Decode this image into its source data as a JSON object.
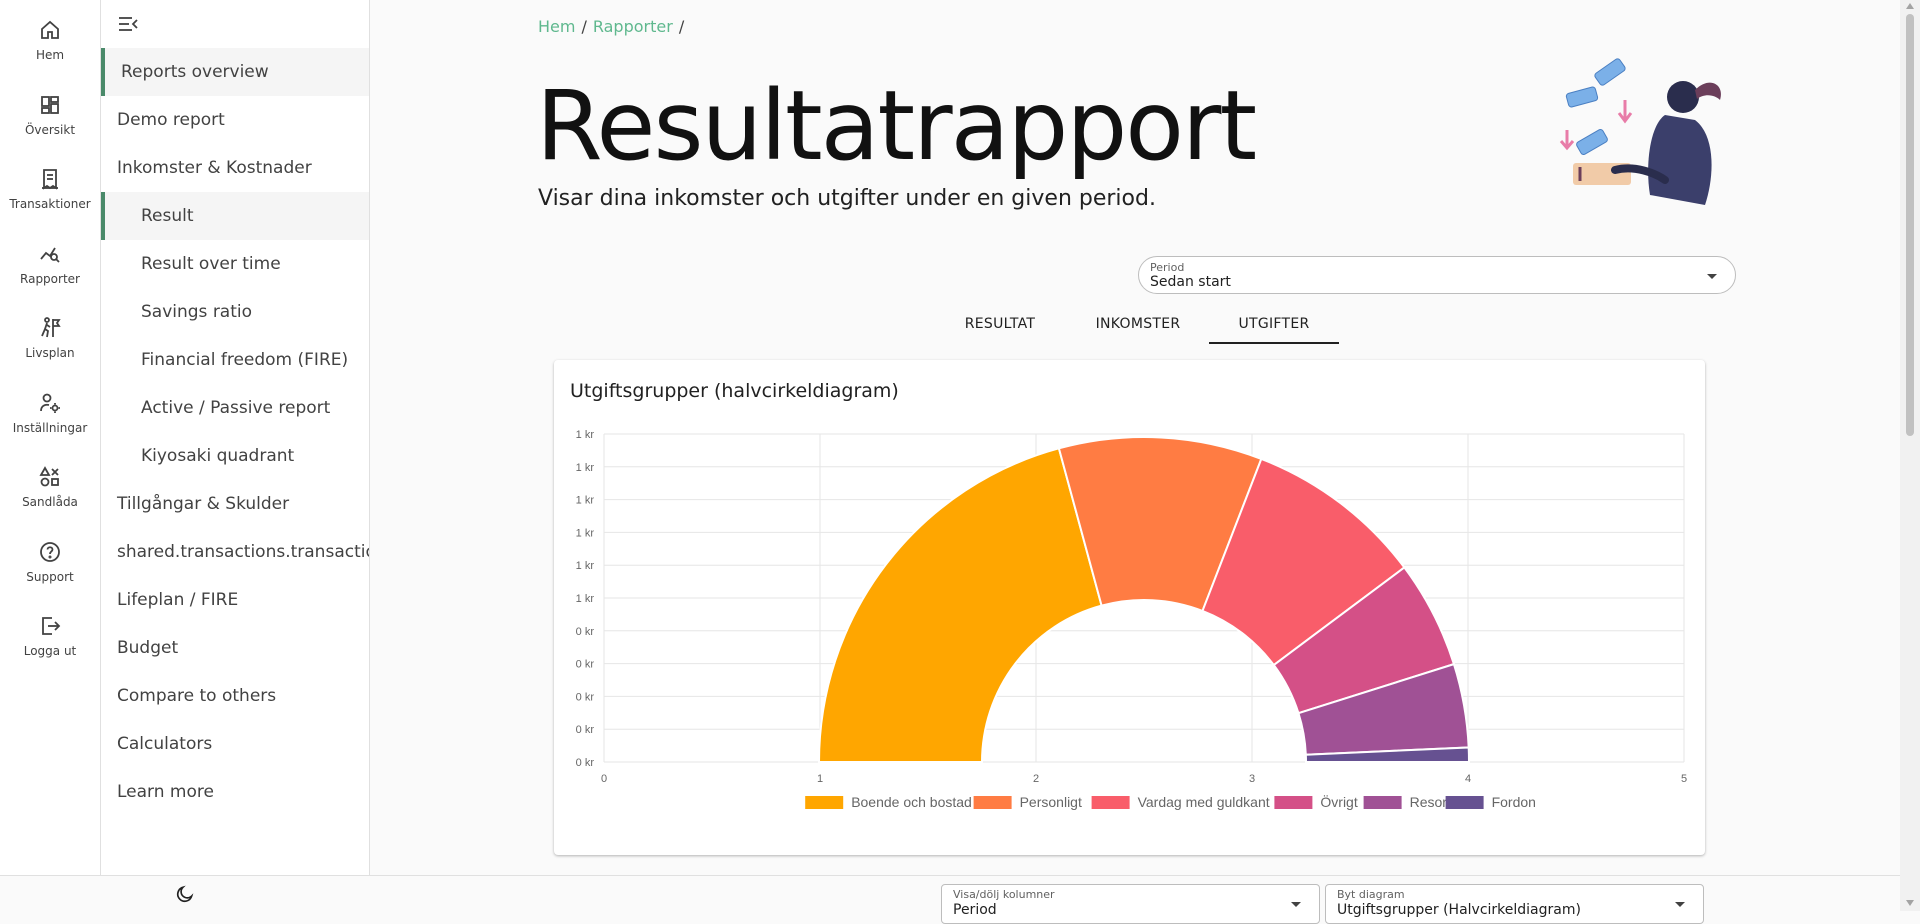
{
  "rail": {
    "items": [
      {
        "label": "Hem",
        "icon": "home-icon"
      },
      {
        "label": "Översikt",
        "icon": "dashboard-icon"
      },
      {
        "label": "Transaktioner",
        "icon": "receipt-icon"
      },
      {
        "label": "Rapporter",
        "icon": "chart-search-icon"
      },
      {
        "label": "Livsplan",
        "icon": "hiker-flag-icon"
      },
      {
        "label": "Inställningar",
        "icon": "user-gear-icon"
      },
      {
        "label": "Sandlåda",
        "icon": "shapes-icon"
      },
      {
        "label": "Support",
        "icon": "help-icon"
      },
      {
        "label": "Logga ut",
        "icon": "logout-icon"
      }
    ]
  },
  "sidebar": {
    "items": [
      {
        "label": "Reports overview",
        "active": true,
        "indent": 0
      },
      {
        "label": "Demo report",
        "active": false,
        "indent": 0
      },
      {
        "label": "Inkomster & Kostnader",
        "active": false,
        "indent": 0
      },
      {
        "label": "Result",
        "active": true,
        "indent": 1
      },
      {
        "label": "Result over time",
        "active": false,
        "indent": 1
      },
      {
        "label": "Savings ratio",
        "active": false,
        "indent": 1
      },
      {
        "label": "Financial freedom (FIRE)",
        "active": false,
        "indent": 1
      },
      {
        "label": "Active / Passive report",
        "active": false,
        "indent": 1
      },
      {
        "label": "Kiyosaki quadrant",
        "active": false,
        "indent": 1
      },
      {
        "label": "Tillgångar & Skulder",
        "active": false,
        "indent": 0
      },
      {
        "label": "shared.transactions.transactions",
        "active": false,
        "indent": 0
      },
      {
        "label": "Lifeplan / FIRE",
        "active": false,
        "indent": 0
      },
      {
        "label": "Budget",
        "active": false,
        "indent": 0
      },
      {
        "label": "Compare to others",
        "active": false,
        "indent": 0
      },
      {
        "label": "Calculators",
        "active": false,
        "indent": 0
      },
      {
        "label": "Learn more",
        "active": false,
        "indent": 0
      }
    ]
  },
  "breadcrumb": {
    "items": [
      "Hem",
      "Rapporter"
    ],
    "separator": "/"
  },
  "page": {
    "title": "Resultatrapport",
    "subtitle": "Visar dina inkomster och utgifter under en given period."
  },
  "period": {
    "label": "Period",
    "value": "Sedan start"
  },
  "tabs": [
    {
      "label": "RESULTAT",
      "active": false
    },
    {
      "label": "INKOMSTER",
      "active": false
    },
    {
      "label": "UTGIFTER",
      "active": true
    }
  ],
  "card": {
    "title": "Utgiftsgrupper (halvcirkeldiagram)"
  },
  "chart_data": {
    "type": "pie",
    "variant": "half-doughnut",
    "series": [
      {
        "name": "Boende och bostad",
        "value": 35,
        "color": "#ffa600"
      },
      {
        "name": "Personligt",
        "value": 17,
        "color": "#ff7c43"
      },
      {
        "name": "Vardag med guldkant",
        "value": 15,
        "color": "#f95d6a"
      },
      {
        "name": "Övrigt",
        "value": 9,
        "color": "#d45087"
      },
      {
        "name": "Resor",
        "value": 7,
        "color": "#a05195"
      },
      {
        "name": "Fordon",
        "value": 1.2,
        "color": "#665191"
      }
    ],
    "x_ticks": [
      "0",
      "1",
      "2",
      "3",
      "4",
      "5"
    ],
    "y_ticks": [
      "1 kr",
      "1 kr",
      "1 kr",
      "1 kr",
      "1 kr",
      "1 kr",
      "0 kr",
      "0 kr",
      "0 kr",
      "0 kr",
      "0 kr"
    ],
    "grid": true,
    "legend_position": "bottom"
  },
  "bottom_controls": {
    "columns": {
      "label": "Visa/dölj kolumner",
      "value": "Period"
    },
    "chart": {
      "label": "Byt diagram",
      "value": "Utgiftsgrupper (Halvcirkeldiagram)"
    }
  },
  "colors": {
    "accent": "#4a8a6a",
    "breadcrumb": "#5fb88e"
  }
}
